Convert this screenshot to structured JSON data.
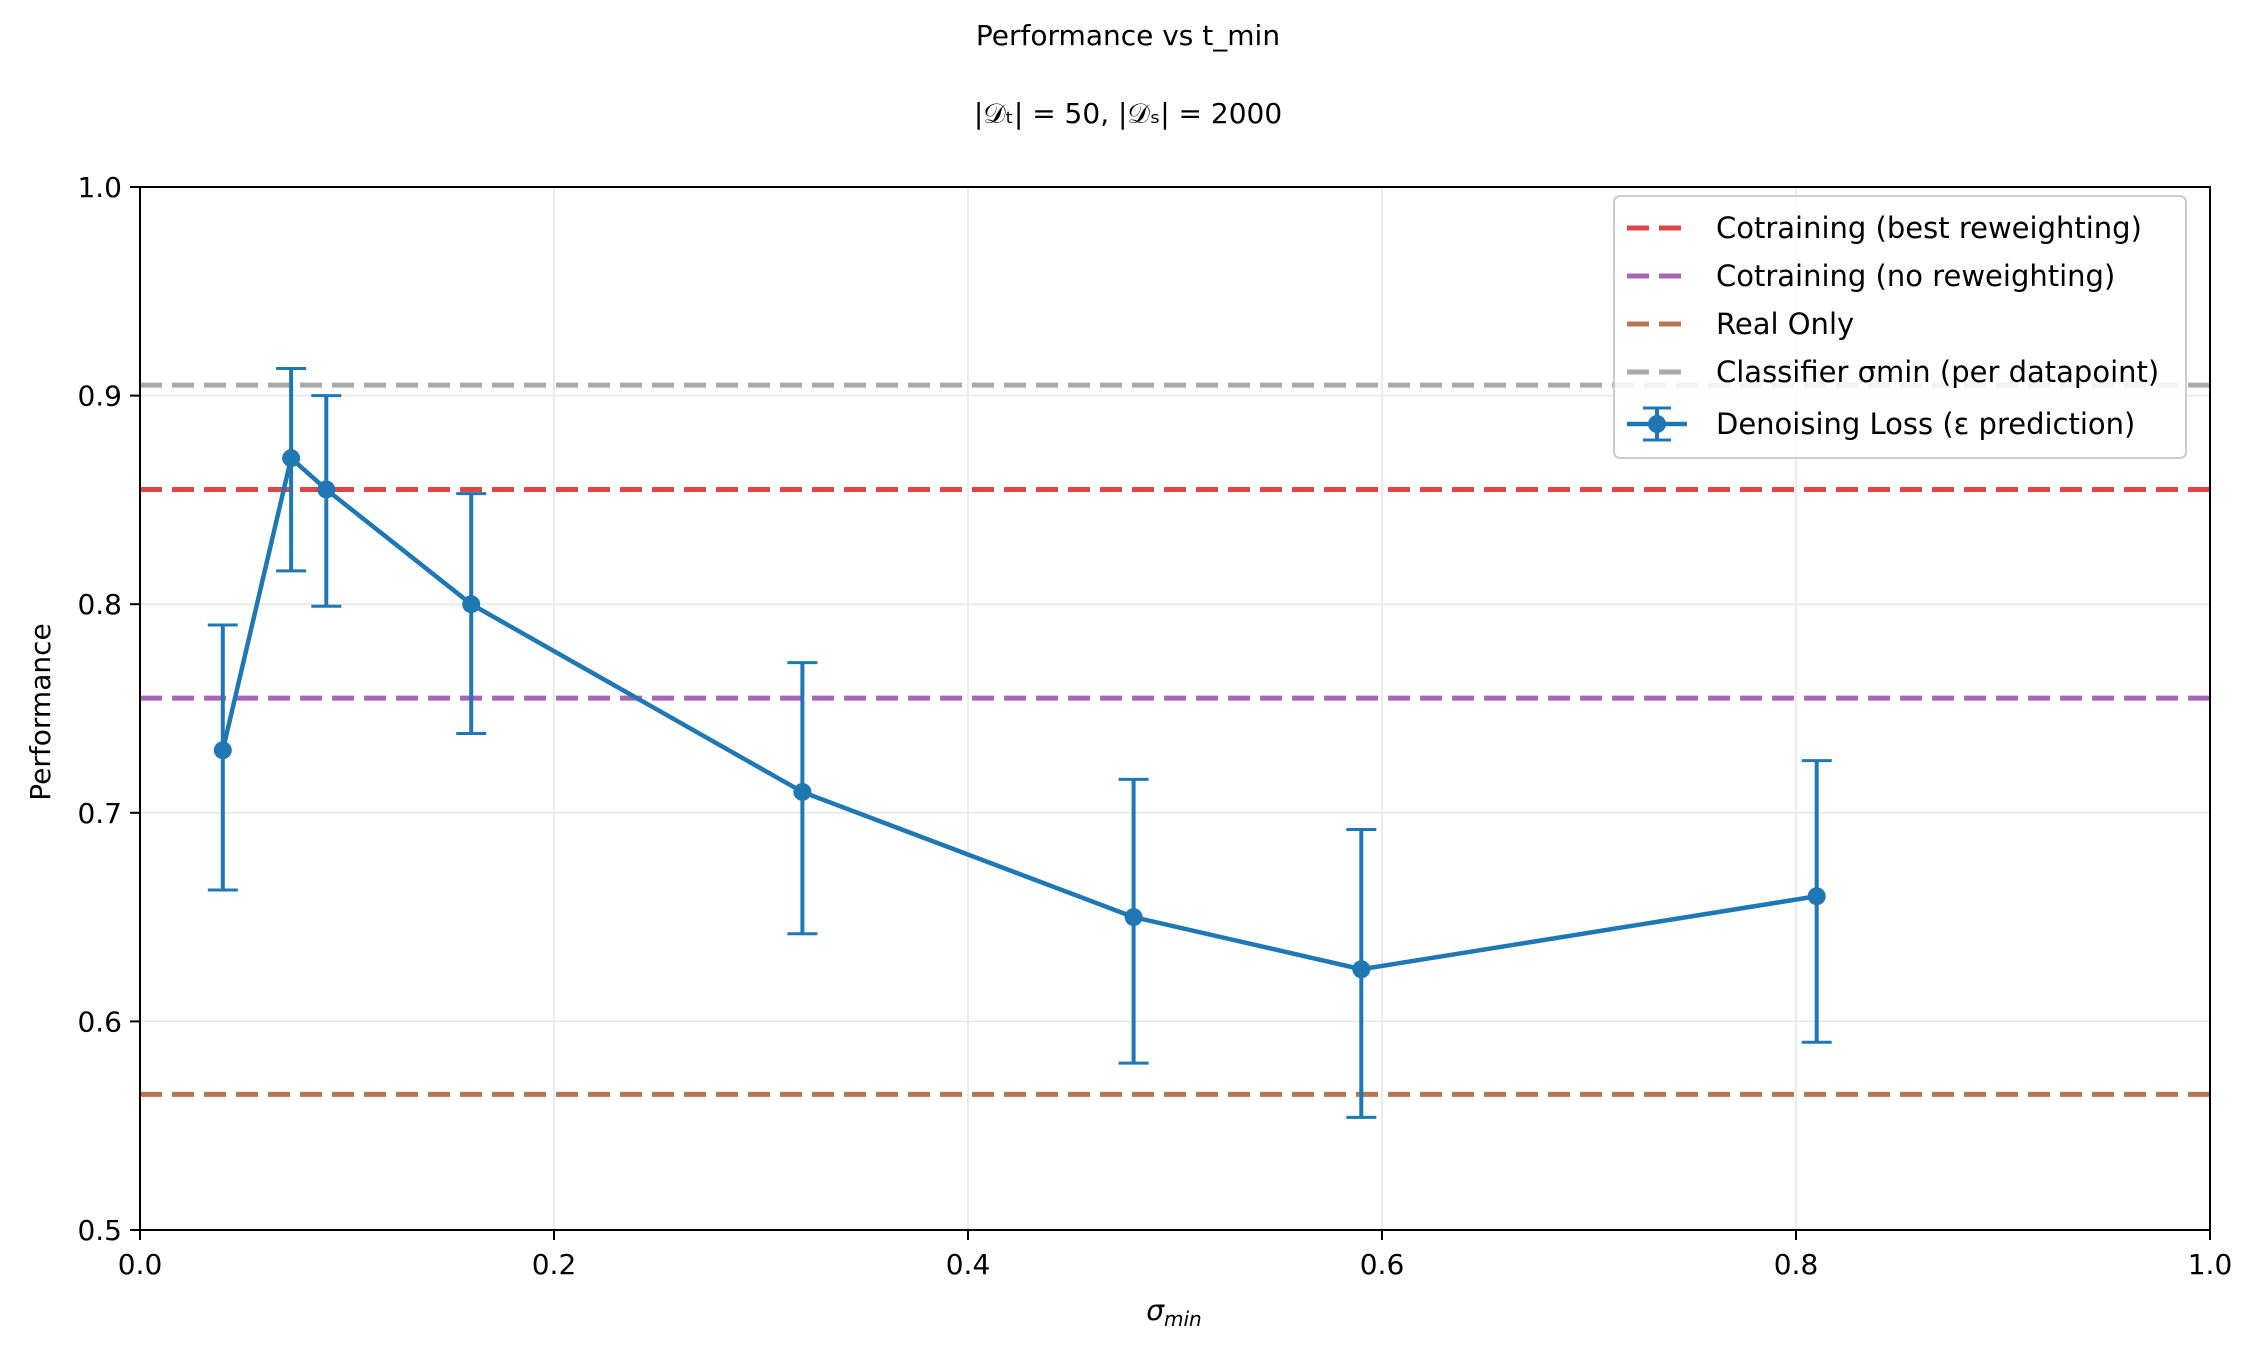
{
  "chart_data": {
    "type": "line",
    "title": "Performance vs t_min",
    "subtitle": "|𝒟ₜ| = 50, |𝒟ₛ| = 2000",
    "xlabel": "σ",
    "xlabel_sub": "min",
    "ylabel": "Performance",
    "xlim": [
      0.0,
      1.0
    ],
    "ylim": [
      0.5,
      1.0
    ],
    "xticks": [
      0.0,
      0.2,
      0.4,
      0.6,
      0.8,
      1.0
    ],
    "yticks": [
      0.5,
      0.6,
      0.7,
      0.8,
      0.9,
      1.0
    ],
    "xtick_labels": [
      "0.0",
      "0.2",
      "0.4",
      "0.6",
      "0.8",
      "1.0"
    ],
    "ytick_labels": [
      "0.5",
      "0.6",
      "0.7",
      "0.8",
      "0.9",
      "1.0"
    ],
    "grid": true,
    "legend_position": "top-right",
    "reference_lines": [
      {
        "name": "Cotraining (best reweighting)",
        "y": 0.855,
        "color": "#e04545"
      },
      {
        "name": "Cotraining (no reweighting)",
        "y": 0.755,
        "color": "#ab63b8"
      },
      {
        "name": "Real Only",
        "y": 0.565,
        "color": "#b87553"
      },
      {
        "name": "Classifier σmin (per datapoint)",
        "y": 0.905,
        "color": "#aaaaaa"
      }
    ],
    "series": [
      {
        "name": "Denoising Loss (ε prediction)",
        "color": "#1f77b4",
        "x": [
          0.04,
          0.073,
          0.09,
          0.16,
          0.32,
          0.48,
          0.59,
          0.81
        ],
        "y": [
          0.73,
          0.87,
          0.855,
          0.8,
          0.71,
          0.65,
          0.625,
          0.66
        ],
        "yerr_low": [
          0.663,
          0.816,
          0.799,
          0.738,
          0.642,
          0.58,
          0.554,
          0.59
        ],
        "yerr_high": [
          0.79,
          0.913,
          0.9,
          0.853,
          0.772,
          0.716,
          0.692,
          0.725
        ]
      }
    ]
  }
}
